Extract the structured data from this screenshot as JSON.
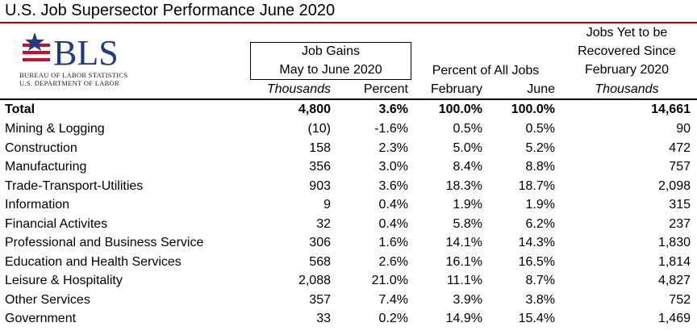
{
  "title": "U.S. Job Supersector Performance June 2020",
  "colors": {
    "rule": "#c00000",
    "logo_blue": "#1f3b86",
    "logo_red": "#c8102e"
  },
  "logo": {
    "text": "BLS",
    "line1": "BUREAU OF LABOR STATISTICS",
    "line2": "U.S. DEPARTMENT OF LABOR"
  },
  "headers": {
    "job_gains_line1": "Job Gains",
    "job_gains_line2": "May to June 2020",
    "percent_of_all_jobs": "Percent of All Jobs",
    "yet_line1": "Jobs Yet to be",
    "yet_line2": "Recovered Since",
    "yet_line3": "February 2020",
    "col_thousands": "Thousands",
    "col_percent": "Percent",
    "col_february": "February",
    "col_june": "June",
    "col_thousands2": "Thousands"
  },
  "rows": [
    {
      "name": "Total",
      "thousands": "4,800",
      "percent": "3.6%",
      "feb": "100.0%",
      "june": "100.0%",
      "yet": "14,661"
    },
    {
      "name": "Mining & Logging",
      "thousands": "(10)",
      "percent": "-1.6%",
      "feb": "0.5%",
      "june": "0.5%",
      "yet": "90"
    },
    {
      "name": "Construction",
      "thousands": "158",
      "percent": "2.3%",
      "feb": "5.0%",
      "june": "5.2%",
      "yet": "472"
    },
    {
      "name": "Manufacturing",
      "thousands": "356",
      "percent": "3.0%",
      "feb": "8.4%",
      "june": "8.8%",
      "yet": "757"
    },
    {
      "name": "Trade-Transport-Utilities",
      "thousands": "903",
      "percent": "3.6%",
      "feb": "18.3%",
      "june": "18.7%",
      "yet": "2,098"
    },
    {
      "name": "Information",
      "thousands": "9",
      "percent": "0.4%",
      "feb": "1.9%",
      "june": "1.9%",
      "yet": "315"
    },
    {
      "name": "Financial Activites",
      "thousands": "32",
      "percent": "0.4%",
      "feb": "5.8%",
      "june": "6.2%",
      "yet": "237"
    },
    {
      "name": "Professional and Business Service",
      "thousands": "306",
      "percent": "1.6%",
      "feb": "14.1%",
      "june": "14.3%",
      "yet": "1,830"
    },
    {
      "name": "Education and Health Services",
      "thousands": "568",
      "percent": "2.6%",
      "feb": "16.1%",
      "june": "16.5%",
      "yet": "1,814"
    },
    {
      "name": "Leisure & Hospitality",
      "thousands": "2,088",
      "percent": "21.0%",
      "feb": "11.1%",
      "june": "8.7%",
      "yet": "4,827"
    },
    {
      "name": "Other Services",
      "thousands": "357",
      "percent": "7.4%",
      "feb": "3.9%",
      "june": "3.8%",
      "yet": "752"
    },
    {
      "name": "Government",
      "thousands": "33",
      "percent": "0.2%",
      "feb": "14.9%",
      "june": "15.4%",
      "yet": "1,469"
    }
  ]
}
